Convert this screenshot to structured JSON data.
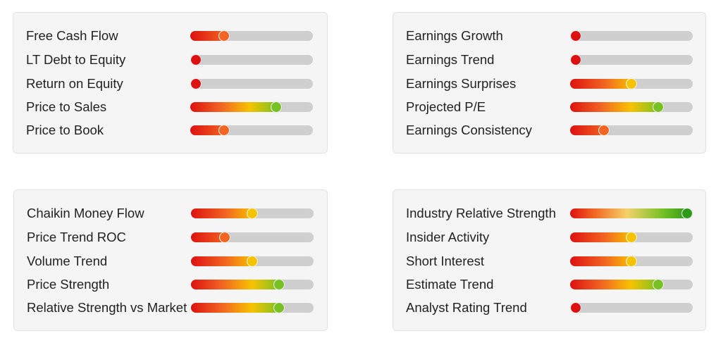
{
  "panels": [
    {
      "name": "panel-financials",
      "metrics": [
        {
          "label": "Free Cash Flow",
          "value": 0.25,
          "level": "orange"
        },
        {
          "label": "LT Debt to Equity",
          "value": 0.0,
          "level": "red"
        },
        {
          "label": "Return on Equity",
          "value": 0.0,
          "level": "red"
        },
        {
          "label": "Price to Sales",
          "value": 0.72,
          "level": "green"
        },
        {
          "label": "Price to Book",
          "value": 0.25,
          "level": "orange"
        }
      ]
    },
    {
      "name": "panel-earnings",
      "metrics": [
        {
          "label": "Earnings Growth",
          "value": 0.0,
          "level": "red"
        },
        {
          "label": "Earnings Trend",
          "value": 0.0,
          "level": "red"
        },
        {
          "label": "Earnings Surprises",
          "value": 0.5,
          "level": "yellow"
        },
        {
          "label": "Projected P/E",
          "value": 0.74,
          "level": "green"
        },
        {
          "label": "Earnings Consistency",
          "value": 0.25,
          "level": "orange"
        }
      ]
    },
    {
      "name": "panel-technicals",
      "metrics": [
        {
          "label": "Chaikin Money Flow",
          "value": 0.5,
          "level": "yellow"
        },
        {
          "label": "Price Trend ROC",
          "value": 0.25,
          "level": "orange"
        },
        {
          "label": "Volume Trend",
          "value": 0.5,
          "level": "yellow"
        },
        {
          "label": "Price Strength",
          "value": 0.74,
          "level": "green"
        },
        {
          "label": "Relative Strength vs Market",
          "value": 0.74,
          "level": "green"
        }
      ]
    },
    {
      "name": "panel-experts",
      "metrics": [
        {
          "label": "Industry Relative Strength",
          "value": 1.0,
          "level": "darkgreen"
        },
        {
          "label": "Insider Activity",
          "value": 0.5,
          "level": "yellow"
        },
        {
          "label": "Short Interest",
          "value": 0.5,
          "level": "yellow"
        },
        {
          "label": "Estimate Trend",
          "value": 0.74,
          "level": "green"
        },
        {
          "label": "Analyst Rating Trend",
          "value": 0.0,
          "level": "red"
        }
      ]
    }
  ],
  "colors": {
    "red": "#dd1111",
    "orange": "#f26522",
    "yellow": "#f7c300",
    "green": "#77c124",
    "darkgreen": "#2f9a1a",
    "track": "#cfcfcf"
  }
}
